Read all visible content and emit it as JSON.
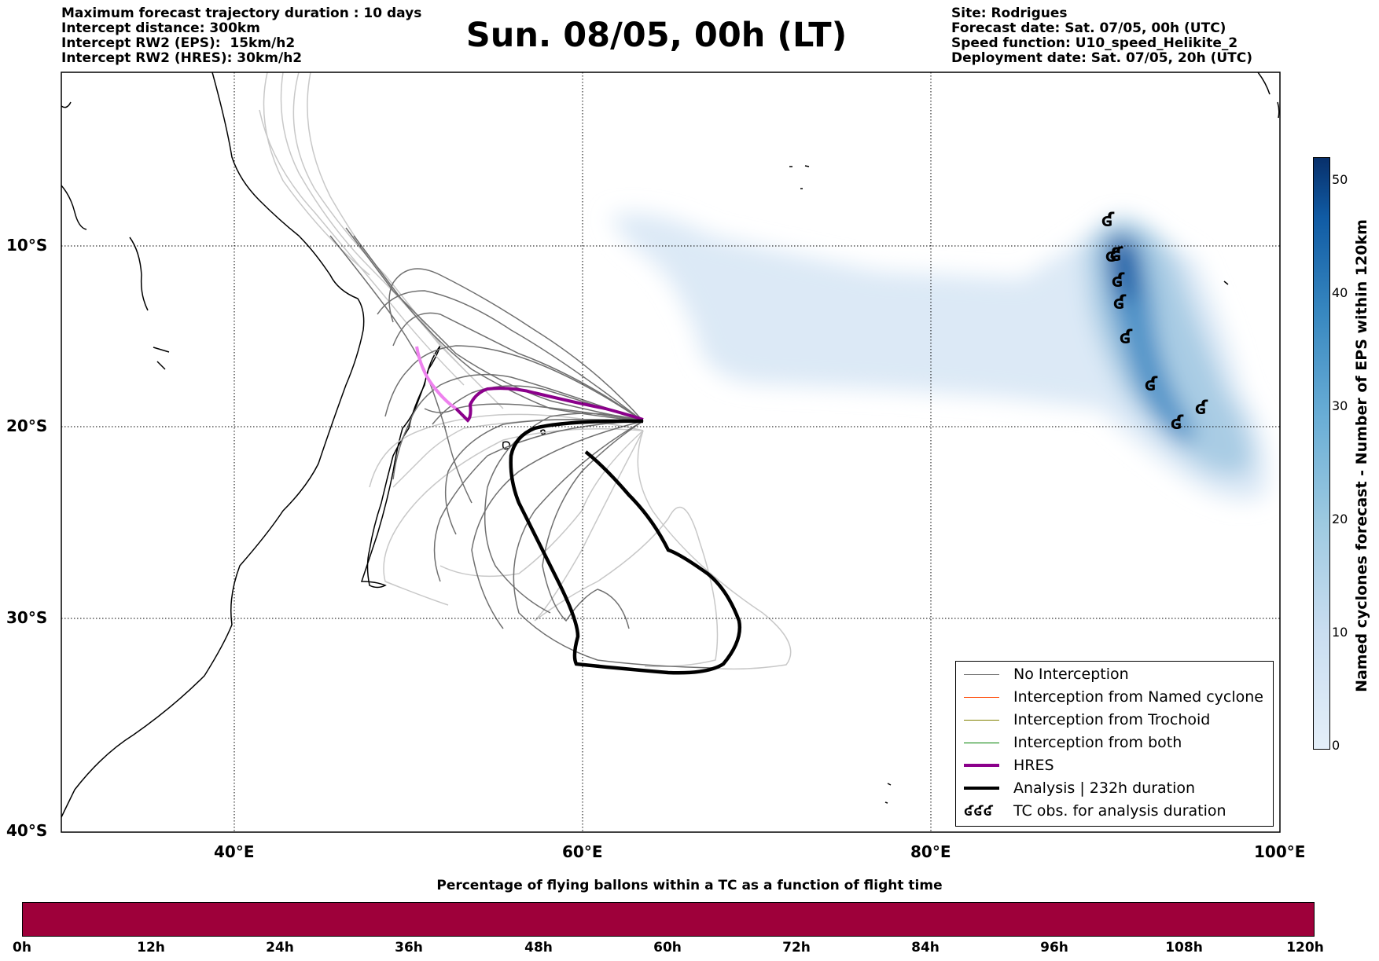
{
  "header_left": [
    "Maximum forecast trajectory duration : 10 days",
    "Intercept distance: 300km",
    "Intercept RW2 (EPS):  15km/h2",
    "Intercept RW2 (HRES): 30km/h2"
  ],
  "title": "Sun. 08/05, 00h (LT)",
  "header_right": [
    "Site: Rodrigues",
    "Forecast date: Sat. 07/05, 00h (UTC)",
    "Speed function: U10_speed_Helikite_2",
    "Deployment date: Sat. 07/05, 20h (UTC)"
  ],
  "map": {
    "lon_range": [
      30,
      100
    ],
    "lat_range": [
      -40,
      0
    ],
    "lat_ticks": [
      "10°S",
      "20°S",
      "30°S",
      "40°S"
    ],
    "lon_ticks": [
      "40°E",
      "60°E",
      "80°E",
      "100°E"
    ],
    "grid": true,
    "deployment_site": "Rodrigues",
    "colors": {
      "no_interception": "#707070",
      "no_interception_light": "#c8c8c8",
      "hres": "#8b008b",
      "hres_early": "#ee82ee",
      "analysis": "#000000",
      "density": "#2171b5"
    }
  },
  "legend": [
    {
      "label": "No Interception",
      "color": "#707070",
      "width": 1
    },
    {
      "label": "Interception from Named cyclone",
      "color": "#ff4500",
      "width": 1
    },
    {
      "label": "Interception from Trochoid",
      "color": "#808000",
      "width": 1
    },
    {
      "label": "Interception from both",
      "color": "#008000",
      "width": 1
    },
    {
      "label": "HRES",
      "color": "#8b008b",
      "width": 4
    },
    {
      "label": "Analysis | 232h duration",
      "color": "#000000",
      "width": 4
    },
    {
      "label": "TC obs. for analysis duration",
      "symbol": "ʛʛʛ"
    }
  ],
  "colorbar": {
    "label": "Named cyclones forecast - Number of EPS within 120km",
    "ticks": [
      "0",
      "10",
      "20",
      "30",
      "40",
      "50"
    ],
    "range": [
      0,
      52
    ]
  },
  "flight_time_bar": {
    "title": "Percentage of flying ballons within a TC as a function of flight time",
    "ticks": [
      "0h",
      "12h",
      "24h",
      "36h",
      "48h",
      "60h",
      "72h",
      "84h",
      "96h",
      "108h",
      "120h"
    ],
    "color": "#9e003a"
  }
}
